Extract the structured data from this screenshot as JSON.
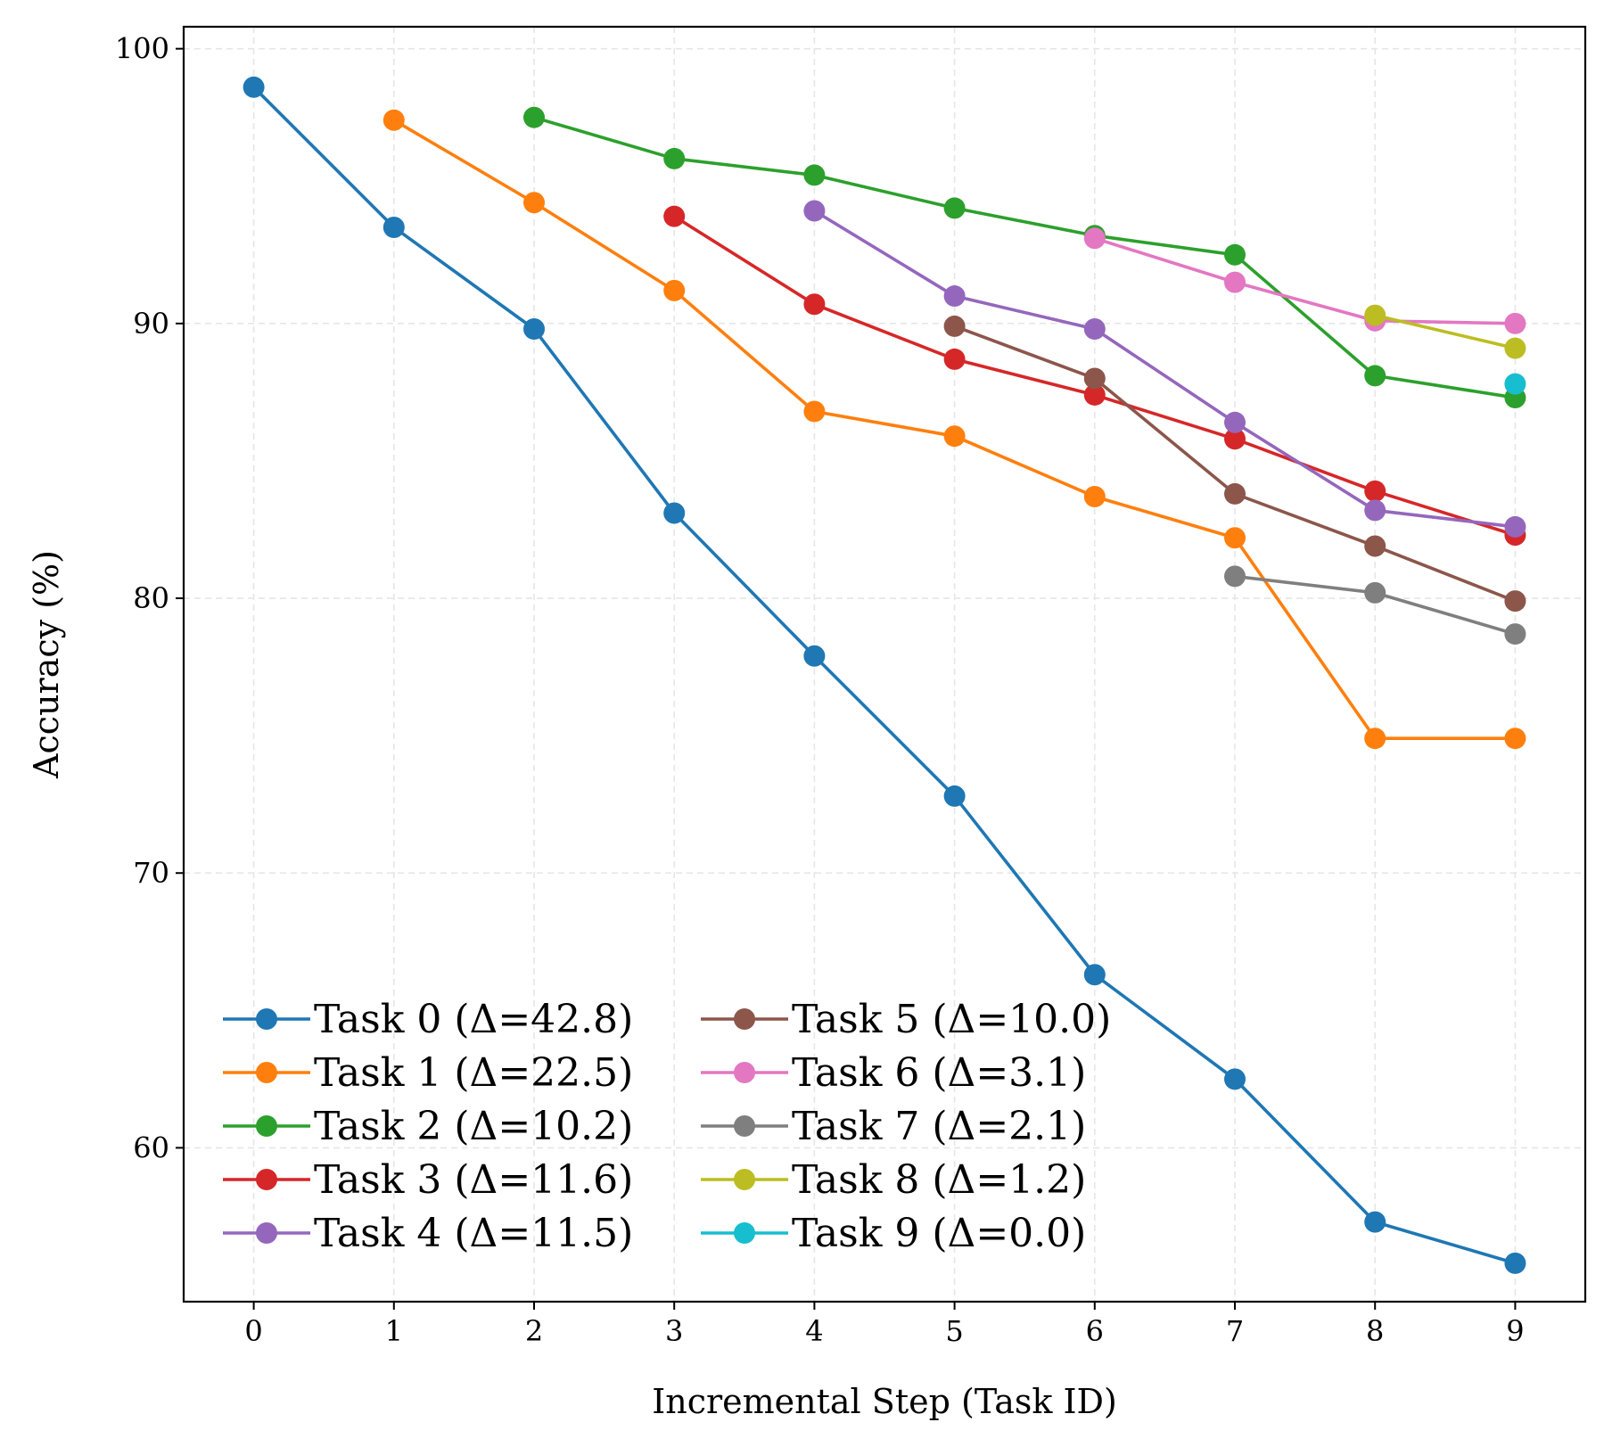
{
  "chart_data": {
    "type": "line",
    "title": "",
    "xlabel": "Incremental Step (Task ID)",
    "ylabel": "Accuracy (%)",
    "xlim": [
      -0.5,
      9.5
    ],
    "ylim": [
      54.4,
      100.8
    ],
    "xticks": [
      0,
      1,
      2,
      3,
      4,
      5,
      6,
      7,
      8,
      9
    ],
    "xtick_labels": [
      "0",
      "1",
      "2",
      "3",
      "4",
      "5",
      "6",
      "7",
      "8",
      "9"
    ],
    "yticks": [
      60,
      70,
      80,
      90,
      100
    ],
    "ytick_labels": [
      "60",
      "70",
      "80",
      "90",
      "100"
    ],
    "grid": true,
    "legend_position": "lower-left",
    "legend_columns": 2,
    "series": [
      {
        "name": "Task 0 (Δ=42.8)",
        "color": "#1f77b4",
        "x": [
          0,
          1,
          2,
          3,
          4,
          5,
          6,
          7,
          8,
          9
        ],
        "values": [
          98.6,
          93.5,
          89.8,
          83.1,
          77.9,
          72.8,
          66.3,
          62.5,
          57.3,
          55.8
        ]
      },
      {
        "name": "Task 1 (Δ=22.5)",
        "color": "#ff7f0e",
        "x": [
          1,
          2,
          3,
          4,
          5,
          6,
          7,
          8,
          9
        ],
        "values": [
          97.4,
          94.4,
          91.2,
          86.8,
          85.9,
          83.7,
          82.2,
          74.9,
          74.9
        ]
      },
      {
        "name": "Task 2 (Δ=10.2)",
        "color": "#2ca02c",
        "x": [
          2,
          3,
          4,
          5,
          6,
          7,
          8,
          9
        ],
        "values": [
          97.5,
          96.0,
          95.4,
          94.2,
          93.2,
          92.5,
          88.1,
          87.3
        ]
      },
      {
        "name": "Task 3 (Δ=11.6)",
        "color": "#d62728",
        "x": [
          3,
          4,
          5,
          6,
          7,
          8,
          9
        ],
        "values": [
          93.9,
          90.7,
          88.7,
          87.4,
          85.8,
          83.9,
          82.3
        ]
      },
      {
        "name": "Task 4 (Δ=11.5)",
        "color": "#9467bd",
        "x": [
          4,
          5,
          6,
          7,
          8,
          9
        ],
        "values": [
          94.1,
          91.0,
          89.8,
          86.4,
          83.2,
          82.6
        ]
      },
      {
        "name": "Task 5 (Δ=10.0)",
        "color": "#8c564b",
        "x": [
          5,
          6,
          7,
          8,
          9
        ],
        "values": [
          89.9,
          88.0,
          83.8,
          81.9,
          79.9
        ]
      },
      {
        "name": "Task 6 (Δ=3.1)",
        "color": "#e377c2",
        "x": [
          6,
          7,
          8,
          9
        ],
        "values": [
          93.1,
          91.5,
          90.1,
          90.0
        ]
      },
      {
        "name": "Task 7 (Δ=2.1)",
        "color": "#7f7f7f",
        "x": [
          7,
          8,
          9
        ],
        "values": [
          80.8,
          80.2,
          78.7
        ]
      },
      {
        "name": "Task 8 (Δ=1.2)",
        "color": "#bcbd22",
        "x": [
          8,
          9
        ],
        "values": [
          90.3,
          89.1
        ]
      },
      {
        "name": "Task 9 (Δ=0.0)",
        "color": "#17becf",
        "x": [
          9
        ],
        "values": [
          87.8
        ]
      }
    ]
  }
}
